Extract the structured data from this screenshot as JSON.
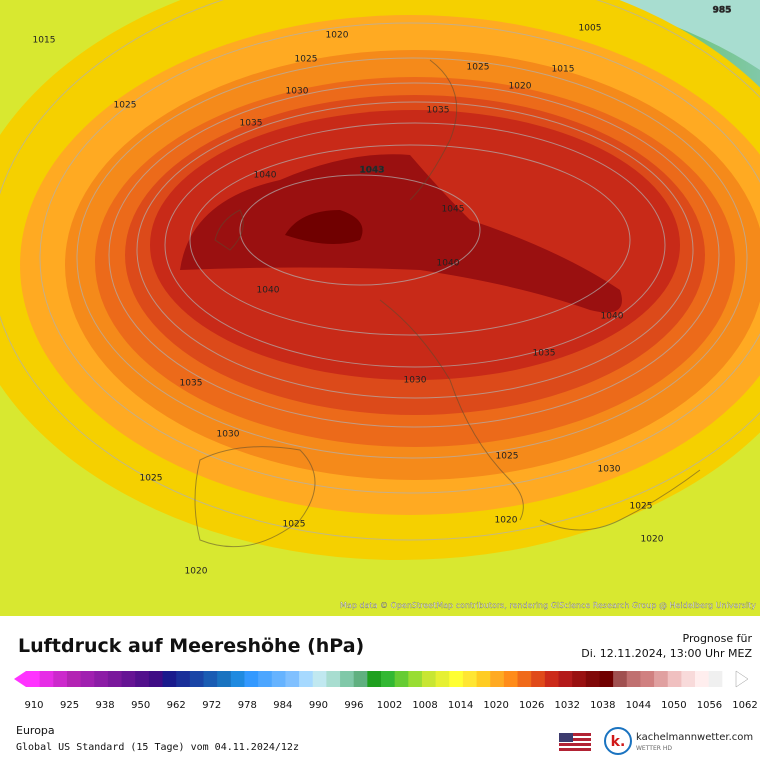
{
  "map": {
    "isobar_labels": [
      "985",
      "1015",
      "1020",
      "1025",
      "1005",
      "1025",
      "1015",
      "1020",
      "1025",
      "1030",
      "1035",
      "1035",
      "1043",
      "1040",
      "1045",
      "1040",
      "1040",
      "1040",
      "1035",
      "1035",
      "1030",
      "1030",
      "1025",
      "1030",
      "1025",
      "1025",
      "1025",
      "1020",
      "1020",
      "1020"
    ],
    "attribution": "Map data © OpenStreetMap contributors, rendering GIScience Research Group @ Heidelberg University"
  },
  "legend": {
    "title": "Luftdruck auf Meereshöhe (hPa)",
    "forecast_label": "Prognose für",
    "forecast_time": "Di. 12.11.2024, 13:00 Uhr MEZ",
    "ticks": [
      910,
      925,
      938,
      950,
      962,
      972,
      978,
      984,
      990,
      996,
      1002,
      1008,
      1014,
      1020,
      1026,
      1032,
      1038,
      1044,
      1050,
      1056,
      1062
    ],
    "colors": [
      "#ff33ff",
      "#e62ee6",
      "#cc29cc",
      "#b324b3",
      "#a020b0",
      "#8c1ca6",
      "#7a189c",
      "#661494",
      "#52108c",
      "#3f0c85",
      "#1a1a8c",
      "#1a2f99",
      "#1a45a6",
      "#1a5cb3",
      "#1a73c0",
      "#1f8ae0",
      "#3399ff",
      "#4da6ff",
      "#66b3ff",
      "#80c0ff",
      "#a6d9ff",
      "#c0e8f0",
      "#a8ddd0",
      "#80c8a8",
      "#60b080",
      "#1fa01f",
      "#33b833",
      "#66cc33",
      "#99dd33",
      "#c8e633",
      "#e6f033",
      "#ffff33",
      "#ffe633",
      "#ffcc22",
      "#ffaa22",
      "#ff8c1a",
      "#f06a1a",
      "#e04a1a",
      "#cc2a1a",
      "#b31a1a",
      "#991010",
      "#800808",
      "#700000",
      "#a05050",
      "#c07070",
      "#d08080",
      "#e0a0a0",
      "#f0c0c0",
      "#f8dada",
      "#ffeeee",
      "#f0f0f0",
      "#ffffff"
    ]
  },
  "footer": {
    "region": "Europa",
    "model": "Global US Standard (15 Tage)  vom  04.11.2024/12z",
    "brand": "kachelmannwetter.com",
    "brand_sub": "WETTER HD",
    "logo_letter": "k."
  }
}
